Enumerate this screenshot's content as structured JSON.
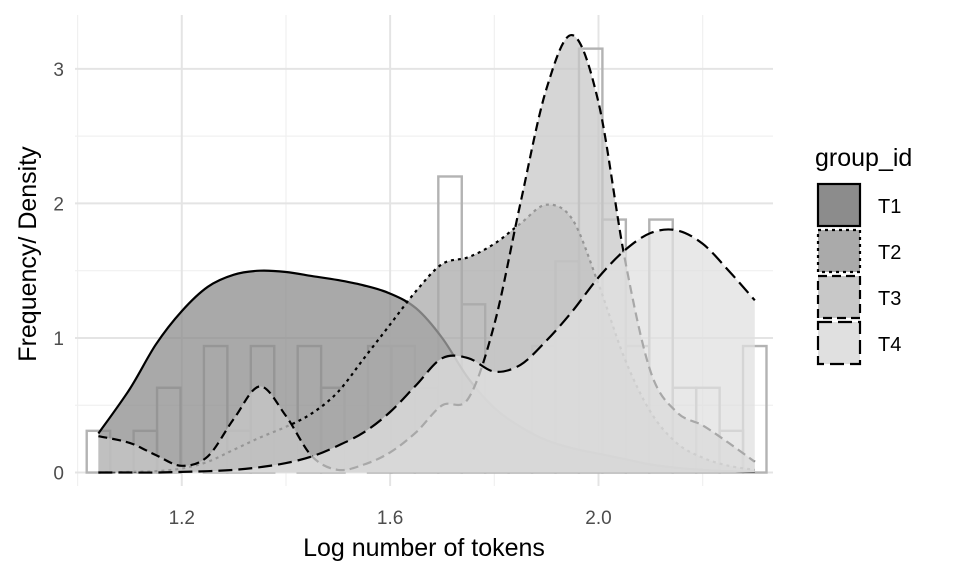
{
  "chart_data": {
    "type": "area",
    "xlabel": "Log number of tokens",
    "ylabel": "Frequency/ Density",
    "xlim": [
      0.995,
      2.335
    ],
    "ylim": [
      -0.1,
      3.4
    ],
    "x_ticks": [
      1.2,
      1.6,
      2.0
    ],
    "x_tick_labels": [
      "1.2",
      "1.6",
      "2.0"
    ],
    "y_ticks": [
      0,
      1,
      2,
      3
    ],
    "y_tick_labels": [
      "0",
      "1",
      "2",
      "3"
    ],
    "grid": true,
    "legend": {
      "title": "group_id",
      "position": "right",
      "entries": [
        {
          "label": "T1",
          "fill": "#8c8c8c",
          "line_style": "solid"
        },
        {
          "label": "T2",
          "fill": "#aaaaaa",
          "line_style": "dotted"
        },
        {
          "label": "T3",
          "fill": "#c8c8c8",
          "line_style": "dashed"
        },
        {
          "label": "T4",
          "fill": "#e0e0e0",
          "line_style": "longdash"
        }
      ]
    },
    "histogram": {
      "bin_width": 0.045,
      "bins": [
        {
          "x": 1.04,
          "height": 0.31
        },
        {
          "x": 1.085,
          "height": 0
        },
        {
          "x": 1.13,
          "height": 0.31
        },
        {
          "x": 1.175,
          "height": 0.63
        },
        {
          "x": 1.22,
          "height": 0
        },
        {
          "x": 1.265,
          "height": 0.94
        },
        {
          "x": 1.31,
          "height": 0.31
        },
        {
          "x": 1.355,
          "height": 0.94
        },
        {
          "x": 1.4,
          "height": 0
        },
        {
          "x": 1.445,
          "height": 0.94
        },
        {
          "x": 1.49,
          "height": 0.63
        },
        {
          "x": 1.535,
          "height": 0
        },
        {
          "x": 1.58,
          "height": 0.94
        },
        {
          "x": 1.625,
          "height": 0.94
        },
        {
          "x": 1.67,
          "height": 0.63
        },
        {
          "x": 1.715,
          "height": 2.2
        },
        {
          "x": 1.76,
          "height": 1.25
        },
        {
          "x": 1.805,
          "height": 0.31
        },
        {
          "x": 1.85,
          "height": 0.31
        },
        {
          "x": 1.895,
          "height": 0.94
        },
        {
          "x": 1.94,
          "height": 1.57
        },
        {
          "x": 1.985,
          "height": 3.15
        },
        {
          "x": 2.03,
          "height": 1.88
        },
        {
          "x": 2.075,
          "height": 0.94
        },
        {
          "x": 2.12,
          "height": 1.88
        },
        {
          "x": 2.165,
          "height": 0.63
        },
        {
          "x": 2.21,
          "height": 0.63
        },
        {
          "x": 2.255,
          "height": 0.31
        },
        {
          "x": 2.3,
          "height": 0.94
        }
      ]
    },
    "series": [
      {
        "name": "T1",
        "fill": "#8c8c8c",
        "line_style": "solid",
        "x": [
          1.04,
          1.1,
          1.15,
          1.2,
          1.25,
          1.3,
          1.35,
          1.4,
          1.45,
          1.5,
          1.55,
          1.6,
          1.65,
          1.7,
          1.75,
          1.8,
          1.85,
          1.9,
          1.95,
          2.0,
          2.05,
          2.1,
          2.15,
          2.2,
          2.25,
          2.3
        ],
        "y": [
          0.29,
          0.62,
          0.95,
          1.2,
          1.38,
          1.47,
          1.5,
          1.49,
          1.46,
          1.43,
          1.39,
          1.33,
          1.22,
          1.0,
          0.7,
          0.48,
          0.34,
          0.24,
          0.18,
          0.14,
          0.1,
          0.06,
          0.035,
          0.02,
          0.01,
          0.005
        ]
      },
      {
        "name": "T2",
        "fill": "#aaaaaa",
        "line_style": "dotted",
        "x": [
          1.04,
          1.1,
          1.15,
          1.2,
          1.25,
          1.3,
          1.35,
          1.4,
          1.45,
          1.5,
          1.55,
          1.6,
          1.65,
          1.7,
          1.75,
          1.8,
          1.85,
          1.9,
          1.95,
          2.0,
          2.05,
          2.1,
          2.15,
          2.2,
          2.25,
          2.3
        ],
        "y": [
          0.0,
          0.005,
          0.01,
          0.03,
          0.08,
          0.17,
          0.26,
          0.34,
          0.44,
          0.6,
          0.85,
          1.1,
          1.35,
          1.55,
          1.6,
          1.7,
          1.85,
          1.99,
          1.88,
          1.4,
          0.85,
          0.45,
          0.22,
          0.11,
          0.05,
          0.02
        ]
      },
      {
        "name": "T3",
        "fill": "#c8c8c8",
        "line_style": "dashed",
        "x": [
          1.04,
          1.1,
          1.15,
          1.2,
          1.25,
          1.3,
          1.35,
          1.4,
          1.45,
          1.5,
          1.55,
          1.6,
          1.65,
          1.7,
          1.75,
          1.8,
          1.85,
          1.9,
          1.95,
          2.0,
          2.05,
          2.1,
          2.15,
          2.2,
          2.25,
          2.3
        ],
        "y": [
          0.27,
          0.22,
          0.13,
          0.05,
          0.12,
          0.4,
          0.64,
          0.42,
          0.12,
          0.02,
          0.06,
          0.15,
          0.3,
          0.5,
          0.55,
          1.1,
          2.0,
          2.85,
          3.25,
          2.75,
          1.6,
          0.75,
          0.45,
          0.35,
          0.22,
          0.08
        ]
      },
      {
        "name": "T4",
        "fill": "#e0e0e0",
        "line_style": "longdash",
        "x": [
          1.04,
          1.1,
          1.15,
          1.2,
          1.25,
          1.3,
          1.35,
          1.4,
          1.45,
          1.5,
          1.55,
          1.6,
          1.65,
          1.7,
          1.75,
          1.8,
          1.85,
          1.9,
          1.95,
          2.0,
          2.05,
          2.1,
          2.15,
          2.2,
          2.25,
          2.3
        ],
        "y": [
          0.0,
          0.0,
          0.0,
          0.005,
          0.01,
          0.02,
          0.04,
          0.07,
          0.12,
          0.2,
          0.3,
          0.45,
          0.65,
          0.85,
          0.85,
          0.75,
          0.8,
          0.98,
          1.2,
          1.45,
          1.65,
          1.78,
          1.8,
          1.7,
          1.5,
          1.28
        ]
      }
    ]
  }
}
